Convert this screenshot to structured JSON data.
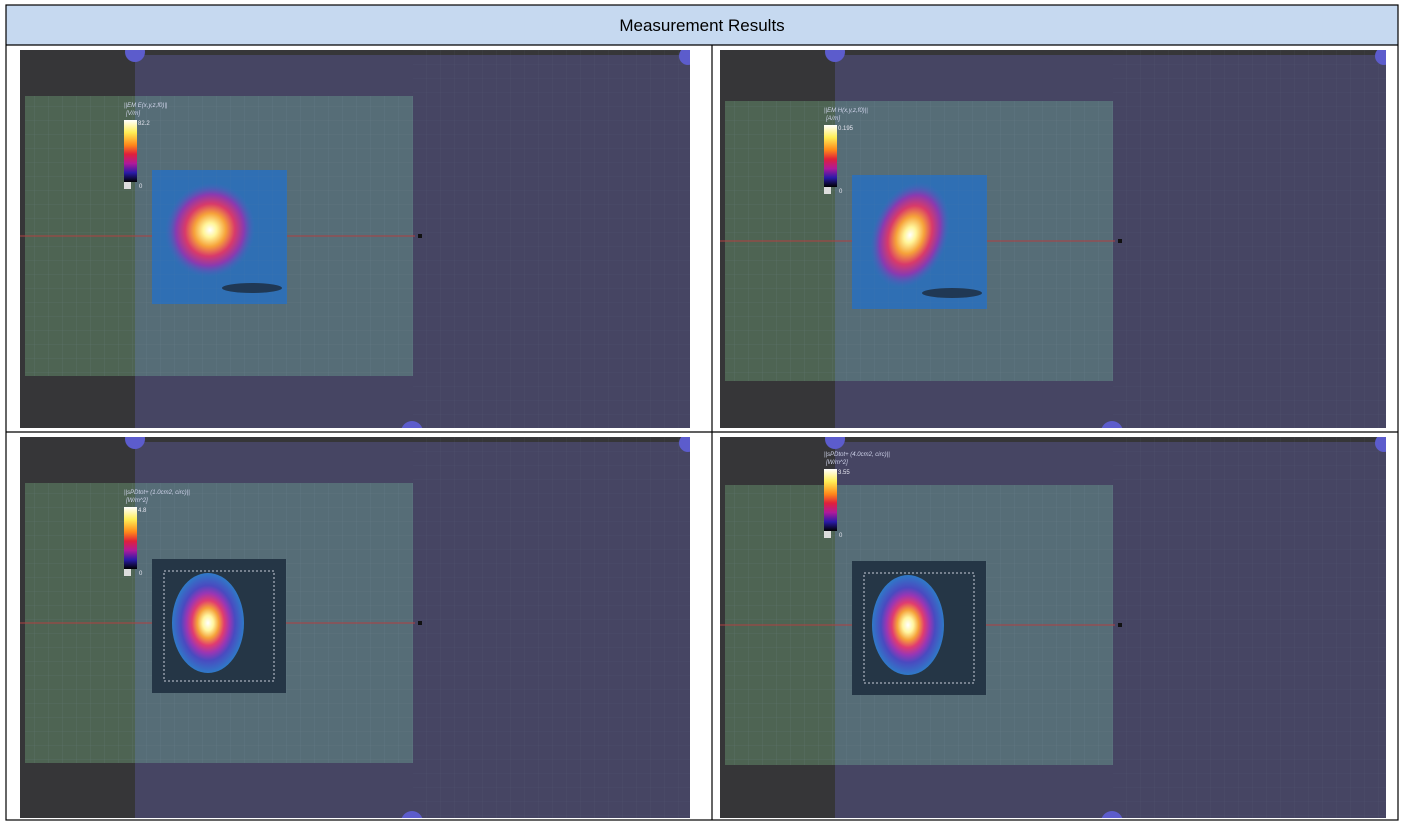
{
  "header": {
    "title": "Measurement Results"
  },
  "panels": [
    {
      "quantity": "||EM E(x,y,z,f0)||",
      "unit": "[V/m]",
      "max": "82.2",
      "min": "0"
    },
    {
      "quantity": "||EM H(x,y,z,f0)||",
      "unit": "[A/m]",
      "max": "0.195",
      "min": "0"
    },
    {
      "quantity": "||sPDtot+ (1.0cm2, circ)||",
      "unit": "[W/m^2]",
      "max": "4.8",
      "min": "0"
    },
    {
      "quantity": "||sPDtot+ (4.0cm2, circ)||",
      "unit": "[W/m^2]",
      "max": "3.55",
      "min": "0"
    }
  ]
}
